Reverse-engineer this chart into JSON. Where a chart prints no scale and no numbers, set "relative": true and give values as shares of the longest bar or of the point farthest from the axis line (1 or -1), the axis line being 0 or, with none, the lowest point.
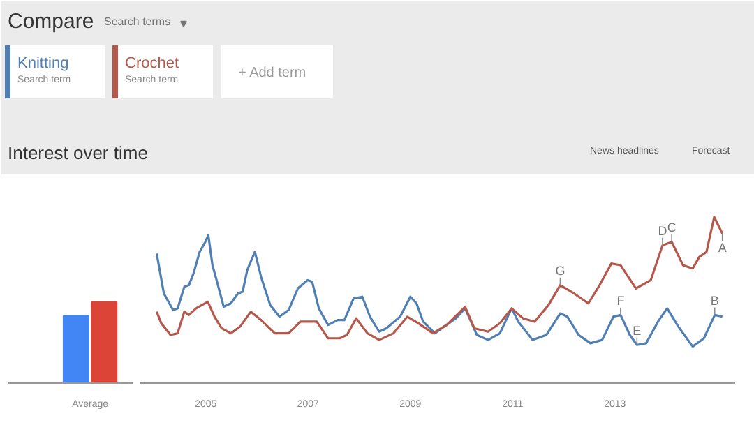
{
  "chart_data": [
    {
      "type": "bar",
      "relative": true,
      "categories": [
        "Average"
      ],
      "series": [
        {
          "color": "#4285f4",
          "values": [
            0.83
          ]
        },
        {
          "color": "#db4437",
          "values": [
            1
          ]
        }
      ]
    },
    {
      "type": "line",
      "relative": true,
      "title": "Interest over time",
      "legend": "top left",
      "xticks": [
        2005,
        2007,
        2009,
        2011,
        2013
      ],
      "xlim": [
        2003.72,
        2015.35
      ],
      "series": [
        {
          "name": "Knitting",
          "color": "#4f7fb3",
          "x": [
            2004.04,
            2004.18,
            2004.36,
            2004.45,
            2004.58,
            2004.67,
            2004.76,
            2004.88,
            2004.99,
            2005.05,
            2005.13,
            2005.22,
            2005.35,
            2005.49,
            2005.63,
            2005.72,
            2005.81,
            2005.96,
            2006.08,
            2006.26,
            2006.44,
            2006.62,
            2006.8,
            2006.99,
            2007.08,
            2007.21,
            2007.39,
            2007.58,
            2007.71,
            2007.89,
            2008.06,
            2008.21,
            2008.39,
            2008.53,
            2008.8,
            2009.0,
            2009.12,
            2009.25,
            2009.48,
            2009.66,
            2009.89,
            2010.07,
            2010.3,
            2010.52,
            2010.75,
            2010.98,
            2011.11,
            2011.39,
            2011.66,
            2011.93,
            2012.07,
            2012.29,
            2012.52,
            2012.75,
            2012.97,
            2013.11,
            2013.29,
            2013.43,
            2013.61,
            2013.84,
            2014.02,
            2014.24,
            2014.52,
            2014.74,
            2014.95,
            2015.1
          ],
          "values": [
            0.78,
            0.54,
            0.44,
            0.45,
            0.58,
            0.59,
            0.66,
            0.79,
            0.85,
            0.89,
            0.71,
            0.61,
            0.46,
            0.48,
            0.54,
            0.55,
            0.68,
            0.79,
            0.64,
            0.47,
            0.4,
            0.44,
            0.57,
            0.62,
            0.61,
            0.45,
            0.35,
            0.38,
            0.38,
            0.51,
            0.52,
            0.4,
            0.31,
            0.33,
            0.4,
            0.52,
            0.48,
            0.37,
            0.3,
            0.34,
            0.39,
            0.45,
            0.29,
            0.26,
            0.3,
            0.45,
            0.37,
            0.26,
            0.29,
            0.42,
            0.4,
            0.29,
            0.24,
            0.26,
            0.4,
            0.41,
            0.29,
            0.23,
            0.24,
            0.37,
            0.45,
            0.34,
            0.22,
            0.27,
            0.41,
            0.4
          ]
        },
        {
          "name": "Crochet",
          "color": "#b5584c",
          "x": [
            2004.04,
            2004.13,
            2004.31,
            2004.45,
            2004.58,
            2004.67,
            2004.81,
            2005.04,
            2005.17,
            2005.31,
            2005.49,
            2005.67,
            2005.88,
            2006.08,
            2006.35,
            2006.62,
            2006.85,
            2007.17,
            2007.39,
            2007.62,
            2007.76,
            2007.94,
            2008.16,
            2008.39,
            2008.67,
            2008.94,
            2009.16,
            2009.44,
            2009.71,
            2010.07,
            2010.25,
            2010.52,
            2010.75,
            2010.98,
            2011.2,
            2011.43,
            2011.7,
            2011.93,
            2012.2,
            2012.48,
            2012.7,
            2012.93,
            2013.11,
            2013.41,
            2013.7,
            2013.93,
            2014.11,
            2014.33,
            2014.52,
            2014.65,
            2014.79,
            2014.94,
            2015.1
          ],
          "values": [
            0.43,
            0.36,
            0.29,
            0.3,
            0.43,
            0.41,
            0.45,
            0.49,
            0.4,
            0.33,
            0.3,
            0.34,
            0.43,
            0.38,
            0.3,
            0.3,
            0.37,
            0.37,
            0.27,
            0.27,
            0.29,
            0.39,
            0.3,
            0.26,
            0.3,
            0.4,
            0.36,
            0.3,
            0.35,
            0.46,
            0.33,
            0.31,
            0.36,
            0.45,
            0.39,
            0.37,
            0.47,
            0.59,
            0.54,
            0.48,
            0.59,
            0.72,
            0.71,
            0.57,
            0.62,
            0.83,
            0.85,
            0.71,
            0.69,
            0.76,
            0.79,
            1.0,
            0.9
          ]
        }
      ],
      "annotations": [
        "Compare",
        "Search terms",
        "Search term",
        "Search term",
        "+ Add term",
        "News headlines",
        "Forecast",
        {
          "text": "A",
          "x": 2015.1,
          "y": 0.9
        },
        {
          "text": "B",
          "x": 2014.95,
          "y": 0.41
        },
        {
          "text": "C",
          "x": 2014.11,
          "y": 0.85
        },
        {
          "text": "D",
          "x": 2013.93,
          "y": 0.83
        },
        {
          "text": "E",
          "x": 2013.43,
          "y": 0.23
        },
        {
          "text": "F",
          "x": 2013.11,
          "y": 0.41
        },
        {
          "text": "G",
          "x": 2011.93,
          "y": 0.59
        }
      ]
    }
  ]
}
